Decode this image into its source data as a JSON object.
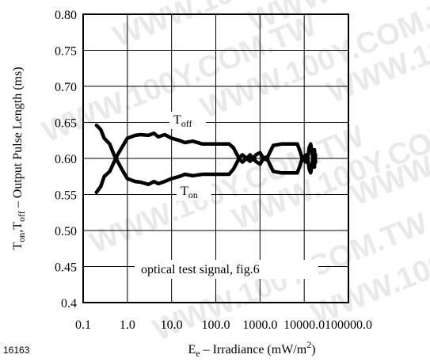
{
  "figure_id": "16163",
  "watermark": "WWW.100Y.COM.TW",
  "chart_data": {
    "type": "line",
    "title": "",
    "xscale": "log",
    "xlim": [
      0.1,
      100000.0
    ],
    "ylim": [
      0.4,
      0.8
    ],
    "x_ticks": [
      0.1,
      1.0,
      10.0,
      100.0,
      1000.0,
      10000.0,
      100000.0
    ],
    "x_tick_labels": [
      "0.1",
      "1.0",
      "10.0",
      "100.0",
      "1000.0",
      "10000.0",
      "100000.0"
    ],
    "y_ticks": [
      0.4,
      0.45,
      0.5,
      0.55,
      0.6,
      0.65,
      0.7,
      0.75,
      0.8
    ],
    "y_tick_labels": [
      "0.4",
      "0.45",
      "0.50",
      "0.55",
      "0.60",
      "0.65",
      "0.70",
      "0.75",
      "0.80"
    ],
    "grid": true,
    "xlabel": {
      "base": "E",
      "sub": "e",
      "rest": " – Irradiance (mW/m",
      "sup": "2",
      "close": ")"
    },
    "ylabel": {
      "p1": "T",
      "s1": "on",
      "p2": ",T",
      "s2": "off",
      "rest": "  – Output Pulse Length (ms)"
    },
    "annotations": {
      "toff": {
        "base": "T",
        "sub": "off"
      },
      "ton": {
        "base": "T",
        "sub": "on"
      },
      "condition": "optical test signal, fig.6"
    },
    "series": [
      {
        "id": "toff",
        "values": [
          [
            0.2,
            0.553
          ],
          [
            0.25,
            0.561
          ],
          [
            0.3,
            0.575
          ],
          [
            0.4,
            0.582
          ],
          [
            0.5,
            0.595
          ],
          [
            0.6,
            0.605
          ],
          [
            0.8,
            0.618
          ],
          [
            1.0,
            0.628
          ],
          [
            1.5,
            0.632
          ],
          [
            2.0,
            0.633
          ],
          [
            3.0,
            0.632
          ],
          [
            4.0,
            0.635
          ],
          [
            5.0,
            0.63
          ],
          [
            7.0,
            0.633
          ],
          [
            10.0,
            0.628
          ],
          [
            15.0,
            0.625
          ],
          [
            20.0,
            0.622
          ],
          [
            30.0,
            0.624
          ],
          [
            50.0,
            0.62
          ],
          [
            100.0,
            0.62
          ],
          [
            200.0,
            0.62
          ],
          [
            250.0,
            0.615
          ],
          [
            350.0,
            0.598
          ],
          [
            400.0,
            0.595
          ],
          [
            500.0,
            0.6
          ],
          [
            600.0,
            0.605
          ],
          [
            700.0,
            0.598
          ],
          [
            800.0,
            0.605
          ],
          [
            1000.0,
            0.608
          ],
          [
            1200.0,
            0.6
          ],
          [
            1400.0,
            0.598
          ],
          [
            1600.0,
            0.606
          ],
          [
            2000.0,
            0.618
          ],
          [
            3000.0,
            0.62
          ],
          [
            5000.0,
            0.62
          ],
          [
            7000.0,
            0.62
          ],
          [
            8000.0,
            0.61
          ],
          [
            9000.0,
            0.6
          ],
          [
            11000.0,
            0.595
          ],
          [
            12000.0,
            0.6
          ],
          [
            13000.0,
            0.615
          ],
          [
            14000.0,
            0.62
          ],
          [
            15000.0,
            0.61
          ],
          [
            16000.0,
            0.595
          ],
          [
            17000.0,
            0.588
          ],
          [
            18000.0,
            0.605
          ]
        ]
      },
      {
        "id": "ton",
        "values": [
          [
            0.2,
            0.646
          ],
          [
            0.25,
            0.64
          ],
          [
            0.3,
            0.628
          ],
          [
            0.4,
            0.62
          ],
          [
            0.5,
            0.605
          ],
          [
            0.6,
            0.596
          ],
          [
            0.8,
            0.582
          ],
          [
            1.0,
            0.572
          ],
          [
            1.5,
            0.568
          ],
          [
            2.0,
            0.567
          ],
          [
            3.0,
            0.564
          ],
          [
            4.0,
            0.568
          ],
          [
            5.0,
            0.565
          ],
          [
            7.0,
            0.568
          ],
          [
            10.0,
            0.572
          ],
          [
            15.0,
            0.575
          ],
          [
            20.0,
            0.578
          ],
          [
            30.0,
            0.576
          ],
          [
            50.0,
            0.578
          ],
          [
            100.0,
            0.578
          ],
          [
            200.0,
            0.578
          ],
          [
            250.0,
            0.585
          ],
          [
            350.0,
            0.602
          ],
          [
            400.0,
            0.605
          ],
          [
            500.0,
            0.6
          ],
          [
            600.0,
            0.596
          ],
          [
            700.0,
            0.602
          ],
          [
            800.0,
            0.596
          ],
          [
            1000.0,
            0.592
          ],
          [
            1200.0,
            0.6
          ],
          [
            1400.0,
            0.602
          ],
          [
            1600.0,
            0.594
          ],
          [
            2000.0,
            0.582
          ],
          [
            3000.0,
            0.58
          ],
          [
            5000.0,
            0.58
          ],
          [
            7000.0,
            0.58
          ],
          [
            8000.0,
            0.59
          ],
          [
            9000.0,
            0.6
          ],
          [
            11000.0,
            0.605
          ],
          [
            12000.0,
            0.6
          ],
          [
            13000.0,
            0.585
          ],
          [
            14000.0,
            0.58
          ],
          [
            15000.0,
            0.59
          ],
          [
            16000.0,
            0.605
          ],
          [
            17000.0,
            0.612
          ],
          [
            18000.0,
            0.595
          ]
        ]
      }
    ]
  }
}
